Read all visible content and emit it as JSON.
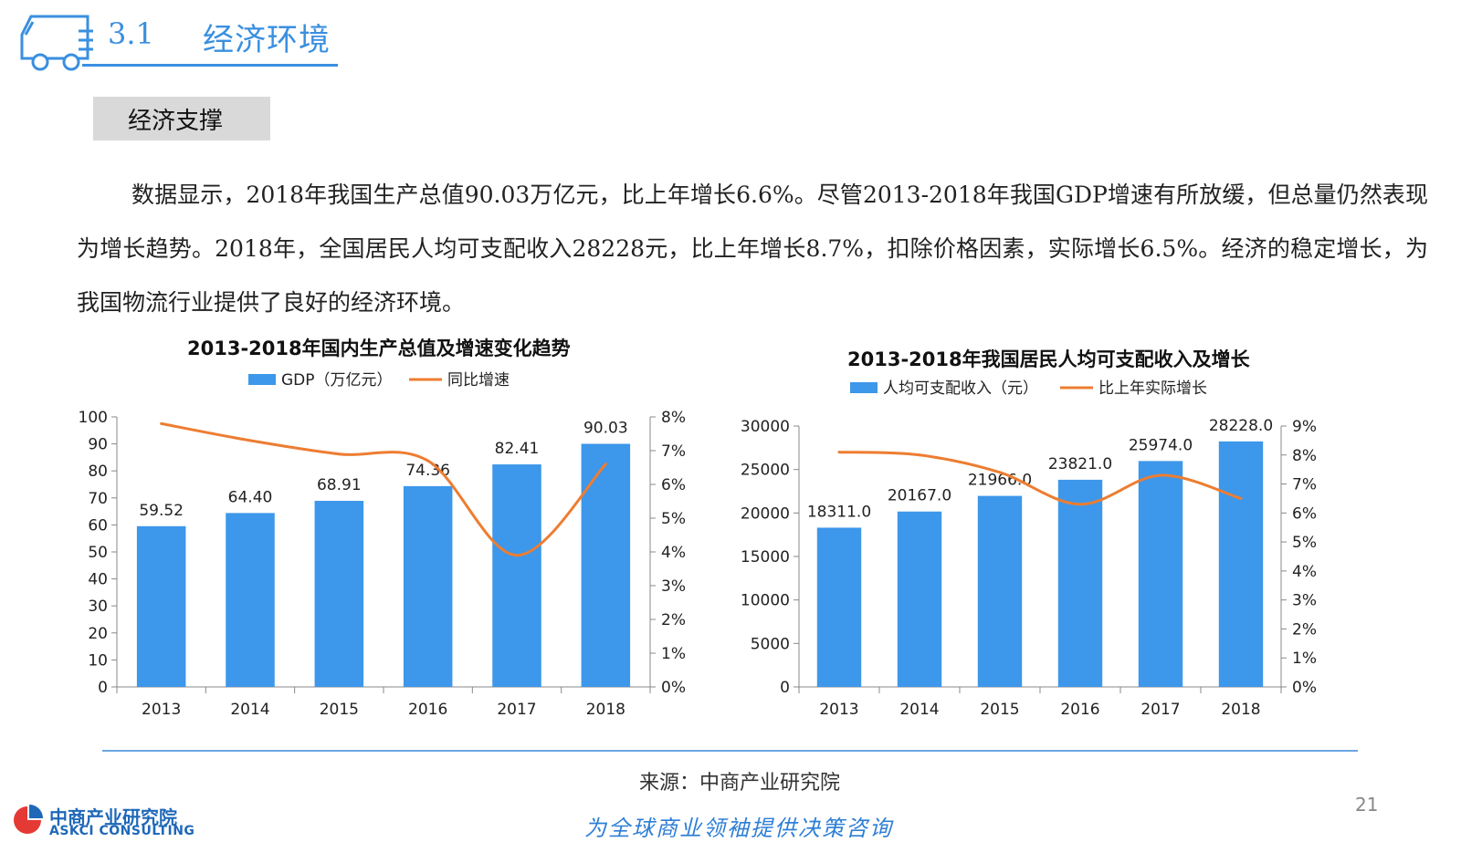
{
  "header": {
    "section_number": "3.1",
    "section_title": "经济环境"
  },
  "subsection": {
    "label": "经济支撑"
  },
  "body": {
    "paragraph": "数据显示，2018年我国生产总值90.03万亿元，比上年增长6.6%。尽管2013-2018年我国GDP增速有所放缓，但总量仍然表现为增长趋势。2018年，全国居民人均可支配收入28228元，比上年增长8.7%，扣除价格因素，实际增长6.5%。经济的稳定增长，为我国物流行业提供了良好的经济环境。"
  },
  "chart_data": [
    {
      "type": "bar+line",
      "title": "2013-2018年国内生产总值及增速变化趋势",
      "categories": [
        "2013",
        "2014",
        "2015",
        "2016",
        "2017",
        "2018"
      ],
      "series": [
        {
          "name": "GDP（万亿元）",
          "kind": "bar",
          "axis": "left",
          "values": [
            59.52,
            64.4,
            68.91,
            74.36,
            82.41,
            90.03
          ],
          "labels": [
            "59.52",
            "64.40",
            "68.91",
            "74.36",
            "82.41",
            "90.03"
          ]
        },
        {
          "name": "同比增速",
          "kind": "line",
          "axis": "right",
          "values": [
            7.8,
            7.3,
            6.9,
            6.7,
            3.9,
            6.6
          ]
        }
      ],
      "ylim_left": [
        0,
        100
      ],
      "yticks_left": [
        "0",
        "10",
        "20",
        "30",
        "40",
        "50",
        "60",
        "70",
        "80",
        "90",
        "100"
      ],
      "ylim_right": [
        0,
        8
      ],
      "yticks_right": [
        "0%",
        "1%",
        "2%",
        "3%",
        "4%",
        "5%",
        "6%",
        "7%",
        "8%"
      ],
      "grid": false,
      "legend": "top",
      "colors": {
        "bar": "#3d97ea",
        "line": "#ed7d31"
      }
    },
    {
      "type": "bar+line",
      "title": "2013-2018年我国居民人均可支配收入及增长",
      "categories": [
        "2013",
        "2014",
        "2015",
        "2016",
        "2017",
        "2018"
      ],
      "series": [
        {
          "name": "人均可支配收入（元）",
          "kind": "bar",
          "axis": "left",
          "values": [
            18311.0,
            20167.0,
            21966.0,
            23821.0,
            25974.0,
            28228.0
          ],
          "labels": [
            "18311.0",
            "20167.0",
            "21966.0",
            "23821.0",
            "25974.0",
            "28228.0"
          ]
        },
        {
          "name": "比上年实际增长",
          "kind": "line",
          "axis": "right",
          "values": [
            8.1,
            8.0,
            7.4,
            6.3,
            7.3,
            6.5
          ]
        }
      ],
      "ylim_left": [
        0,
        30000
      ],
      "yticks_left": [
        "0",
        "5000",
        "10000",
        "15000",
        "20000",
        "25000",
        "30000"
      ],
      "ylim_right": [
        0,
        9
      ],
      "yticks_right": [
        "0%",
        "1%",
        "2%",
        "3%",
        "4%",
        "5%",
        "6%",
        "7%",
        "8%",
        "9%"
      ],
      "grid": false,
      "legend": "top",
      "colors": {
        "bar": "#3d97ea",
        "line": "#ed7d31"
      }
    }
  ],
  "footer": {
    "source": "来源：中商产业研究院",
    "page_number": "21",
    "tagline": "为全球商业领袖提供决策咨询",
    "logo_cn": "中商产业研究院",
    "logo_en": "ASKCI CONSULTING"
  }
}
